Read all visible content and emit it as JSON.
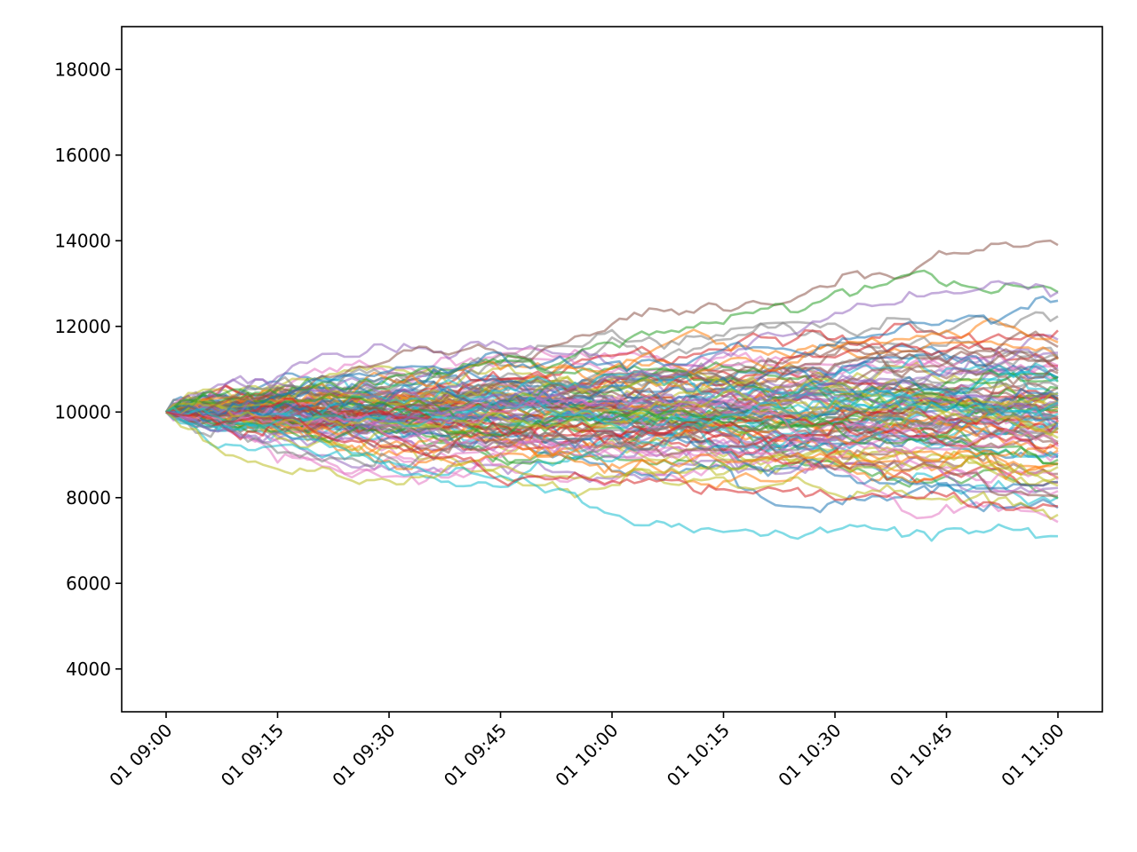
{
  "chart_data": {
    "type": "line",
    "title": "",
    "xlabel": "",
    "ylabel": "",
    "x_range": [
      "01 09:00",
      "01 11:00"
    ],
    "x_step_minutes": 1,
    "ylim": [
      3000,
      19000
    ],
    "yticks": [
      4000,
      6000,
      8000,
      10000,
      12000,
      14000,
      16000,
      18000
    ],
    "xticks": [
      "01 09:00",
      "01 09:15",
      "01 09:30",
      "01 09:45",
      "01 10:00",
      "01 10:15",
      "01 10:30",
      "01 10:45",
      "01 11:00"
    ],
    "start_value": 10000,
    "grid": false,
    "legend": "none",
    "palette": [
      "#1f77b4",
      "#ff7f0e",
      "#2ca02c",
      "#d62728",
      "#9467bd",
      "#8c564b",
      "#e377c2",
      "#7f7f7f",
      "#bcbd22",
      "#17becf"
    ],
    "highlighted_series_endpoints": [
      {
        "color": "#8c564b",
        "end": 13900,
        "max": 14100
      },
      {
        "color": "#2ca02c",
        "end": 12800,
        "max": 13500
      },
      {
        "color": "#1f77b4",
        "end": 12600,
        "max": 12600
      },
      {
        "color": "#9467bd",
        "end": 12800,
        "max": 12800
      },
      {
        "color": "#17becf",
        "end": 7100,
        "min": 7000
      },
      {
        "color": "#bcbd22",
        "end": 7600,
        "min": 7400
      },
      {
        "color": "#d62728",
        "end": 7800,
        "min": 7700
      }
    ],
    "series_count": 100
  }
}
